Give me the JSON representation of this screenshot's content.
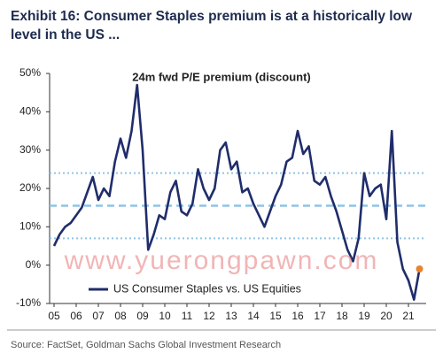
{
  "chart_data": {
    "type": "line",
    "title": "Exhibit 16: Consumer Staples premium is at a historically low level in the US ...",
    "subtitle": "24m fwd P/E premium (discount)",
    "source": "Source: FactSet, Goldman Sachs Global Investment Research",
    "watermark": "www.yuerongpawn.com",
    "x": [
      2005,
      2005.25,
      2005.5,
      2005.75,
      2006,
      2006.25,
      2006.5,
      2006.75,
      2007,
      2007.25,
      2007.5,
      2007.75,
      2008,
      2008.25,
      2008.5,
      2008.75,
      2009,
      2009.25,
      2009.5,
      2009.75,
      2010,
      2010.25,
      2010.5,
      2010.75,
      2011,
      2011.25,
      2011.5,
      2011.75,
      2012,
      2012.25,
      2012.5,
      2012.75,
      2013,
      2013.25,
      2013.5,
      2013.75,
      2014,
      2014.25,
      2014.5,
      2014.75,
      2015,
      2015.25,
      2015.5,
      2015.75,
      2016,
      2016.25,
      2016.5,
      2016.75,
      2017,
      2017.25,
      2017.5,
      2017.75,
      2018,
      2018.25,
      2018.5,
      2018.75,
      2019,
      2019.25,
      2019.5,
      2019.75,
      2020,
      2020.25,
      2020.5,
      2020.75,
      2021,
      2021.25,
      2021.5
    ],
    "series": [
      {
        "name": "US Consumer Staples vs. US Equities",
        "color": "#1f2d6b",
        "values": [
          5,
          8,
          10,
          11,
          13,
          15,
          19,
          23,
          17,
          20,
          18,
          27,
          33,
          28,
          35,
          47,
          30,
          4,
          8,
          13,
          12,
          19,
          22,
          14,
          13,
          16,
          25,
          20,
          17,
          20,
          30,
          32,
          25,
          27,
          19,
          20,
          16,
          13,
          10,
          14,
          18,
          21,
          27,
          28,
          35,
          29,
          31,
          22,
          21,
          23,
          18,
          14,
          9,
          4,
          1,
          7,
          24,
          18,
          20,
          21,
          12,
          35,
          6,
          -1,
          -4,
          -9,
          -1
        ]
      }
    ],
    "last_point_color": "#e8842c",
    "reference_lines": [
      24,
      15.5,
      7
    ],
    "reference_color": "#8fc3e6",
    "xlim": [
      2004.8,
      2021.8
    ],
    "xticks": [
      {
        "value": 2005,
        "label": "05"
      },
      {
        "value": 2006,
        "label": "06"
      },
      {
        "value": 2007,
        "label": "07"
      },
      {
        "value": 2008,
        "label": "08"
      },
      {
        "value": 2009,
        "label": "09"
      },
      {
        "value": 2010,
        "label": "10"
      },
      {
        "value": 2011,
        "label": "11"
      },
      {
        "value": 2012,
        "label": "12"
      },
      {
        "value": 2013,
        "label": "13"
      },
      {
        "value": 2014,
        "label": "14"
      },
      {
        "value": 2015,
        "label": "15"
      },
      {
        "value": 2016,
        "label": "16"
      },
      {
        "value": 2017,
        "label": "17"
      },
      {
        "value": 2018,
        "label": "18"
      },
      {
        "value": 2019,
        "label": "19"
      },
      {
        "value": 2020,
        "label": "20"
      },
      {
        "value": 2021,
        "label": "21"
      }
    ],
    "ylim": [
      -10,
      50
    ],
    "yticks": [
      {
        "value": -10,
        "label": "-10%"
      },
      {
        "value": 0,
        "label": "0%"
      },
      {
        "value": 10,
        "label": "10%"
      },
      {
        "value": 20,
        "label": "20%"
      },
      {
        "value": 30,
        "label": "30%"
      },
      {
        "value": 40,
        "label": "40%"
      },
      {
        "value": 50,
        "label": "50%"
      }
    ],
    "grid": false
  }
}
